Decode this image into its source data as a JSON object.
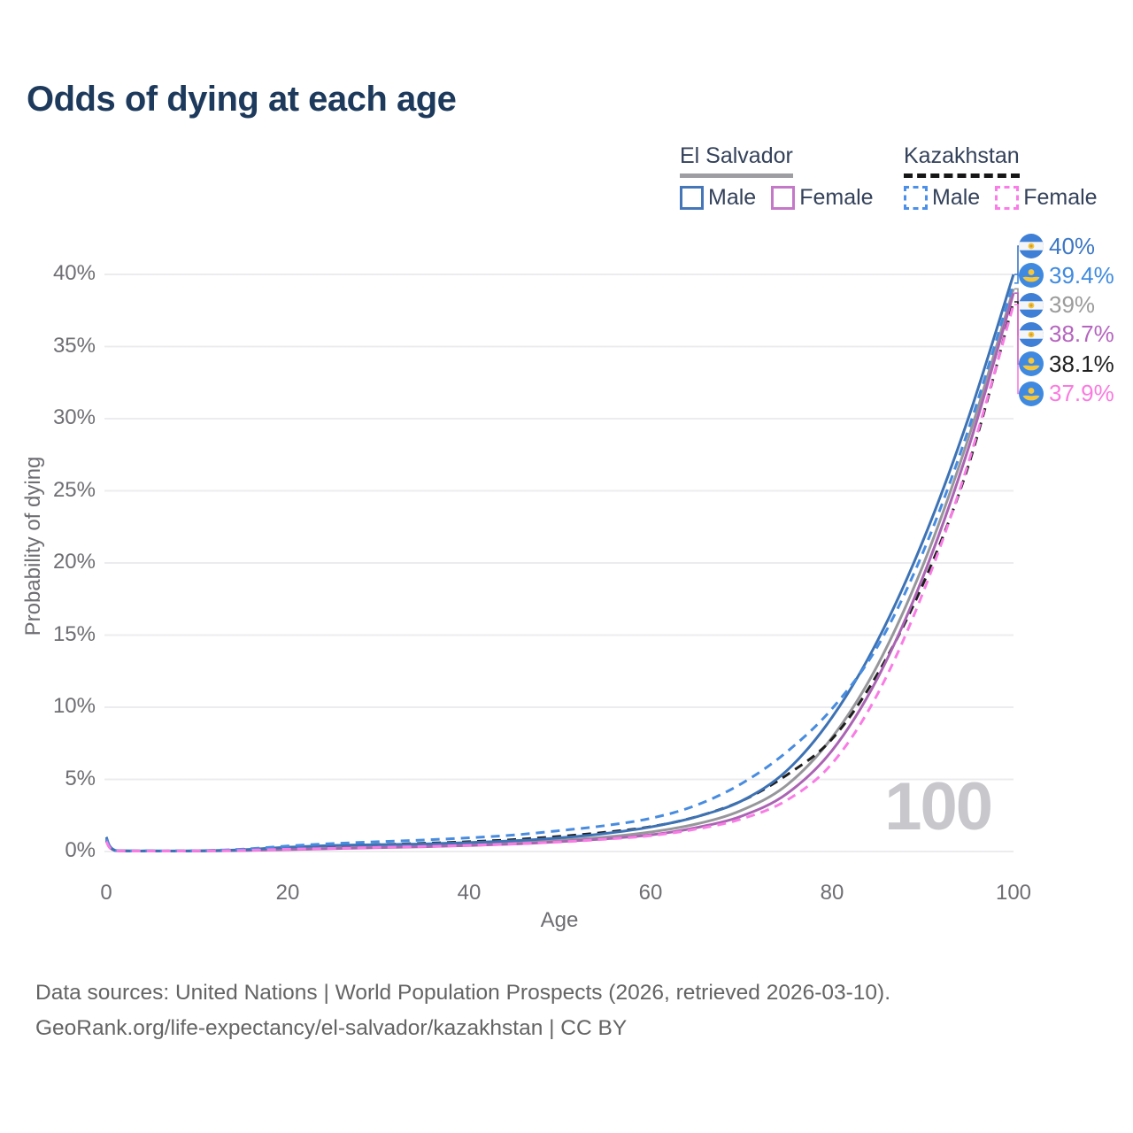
{
  "title": "Odds of dying at each age",
  "legend": {
    "groups": [
      {
        "label": "El Salvador",
        "line_style": "solid",
        "underline_color": "#9e9ea2",
        "items": [
          {
            "label": "Male",
            "color": "#4577b8",
            "style": "solid"
          },
          {
            "label": "Female",
            "color": "#c478c8",
            "style": "solid"
          }
        ]
      },
      {
        "label": "Kazakhstan",
        "line_style": "dashed",
        "underline_color": "#161616",
        "items": [
          {
            "label": "Male",
            "color": "#4a8fe8",
            "style": "dashed"
          },
          {
            "label": "Female",
            "color": "#fb7ce8",
            "style": "dashed"
          }
        ]
      }
    ]
  },
  "watermark": "100",
  "footer": {
    "line1": "Data sources: United Nations | World Population Prospects (2026, retrieved 2026-03-10).",
    "line2": "GeoRank.org/life-expectancy/el-salvador/kazakhstan | CC BY"
  },
  "chart_data": {
    "type": "line",
    "title": "Odds of dying at each age",
    "xlabel": "Age",
    "ylabel": "Probability of dying",
    "xlim": [
      0,
      100
    ],
    "ylim": [
      0,
      43
    ],
    "grid": "horizontal",
    "grid_color": "#ececef",
    "xticks": [
      {
        "v": 0,
        "label": "0"
      },
      {
        "v": 20,
        "label": "20"
      },
      {
        "v": 40,
        "label": "40"
      },
      {
        "v": 60,
        "label": "60"
      },
      {
        "v": 80,
        "label": "80"
      },
      {
        "v": 100,
        "label": "100"
      }
    ],
    "yticks": [
      {
        "v": 0,
        "label": "0%"
      },
      {
        "v": 5,
        "label": "5%"
      },
      {
        "v": 10,
        "label": "10%"
      },
      {
        "v": 15,
        "label": "15%"
      },
      {
        "v": 20,
        "label": "20%"
      },
      {
        "v": 25,
        "label": "25%"
      },
      {
        "v": 30,
        "label": "30%"
      },
      {
        "v": 35,
        "label": "35%"
      },
      {
        "v": 40,
        "label": "40%"
      }
    ],
    "x": [
      0,
      1,
      5,
      10,
      15,
      20,
      25,
      30,
      35,
      40,
      45,
      50,
      55,
      60,
      65,
      70,
      75,
      80,
      85,
      90,
      95,
      100
    ],
    "series": [
      {
        "id": "el-salvador-male",
        "name": "El Salvador Male",
        "color": "#3d72b4",
        "dash": "solid",
        "values": [
          1.0,
          0.08,
          0.04,
          0.05,
          0.12,
          0.3,
          0.42,
          0.47,
          0.52,
          0.62,
          0.75,
          0.95,
          1.25,
          1.7,
          2.4,
          3.5,
          5.6,
          9.3,
          14.6,
          21.5,
          30.0,
          40.0
        ],
        "end": {
          "text": "40%",
          "color": "#3c76c4",
          "flag": "el-salvador"
        }
      },
      {
        "id": "kazakhstan-male",
        "name": "Kazakhstan Male",
        "color": "#478ce0",
        "dash": "dashed",
        "values": [
          0.85,
          0.07,
          0.04,
          0.06,
          0.16,
          0.38,
          0.55,
          0.68,
          0.8,
          0.95,
          1.15,
          1.45,
          1.8,
          2.3,
          3.2,
          4.7,
          6.9,
          9.9,
          14.2,
          20.7,
          29.2,
          39.4
        ],
        "end": {
          "text": "39.4%",
          "color": "#3f8be0",
          "flag": "kazakhstan"
        }
      },
      {
        "id": "el-salvador-all",
        "name": "El Salvador",
        "color": "#97979b",
        "dash": "solid",
        "values": [
          0.9,
          0.07,
          0.03,
          0.04,
          0.1,
          0.23,
          0.32,
          0.36,
          0.4,
          0.48,
          0.6,
          0.78,
          1.0,
          1.35,
          1.9,
          2.85,
          4.6,
          7.9,
          12.9,
          19.8,
          28.6,
          39.0
        ],
        "end": {
          "text": "39%",
          "color": "#9b9b9b",
          "flag": "el-salvador"
        }
      },
      {
        "id": "el-salvador-female",
        "name": "El Salvador Female",
        "color": "#ab63b3",
        "dash": "solid",
        "values": [
          0.8,
          0.06,
          0.03,
          0.035,
          0.07,
          0.13,
          0.2,
          0.27,
          0.33,
          0.42,
          0.52,
          0.68,
          0.88,
          1.15,
          1.65,
          2.45,
          4.0,
          7.0,
          12.0,
          19.0,
          27.9,
          38.7
        ],
        "end": {
          "text": "38.7%",
          "color": "#b565be",
          "flag": "el-salvador"
        }
      },
      {
        "id": "kazakhstan-all",
        "name": "Kazakhstan",
        "color": "#1d1d1d",
        "dash": "dashed",
        "values": [
          0.75,
          0.06,
          0.035,
          0.05,
          0.13,
          0.29,
          0.4,
          0.48,
          0.57,
          0.68,
          0.83,
          1.05,
          1.33,
          1.72,
          2.4,
          3.5,
          5.3,
          7.8,
          12.3,
          18.5,
          26.7,
          38.1
        ],
        "end": {
          "text": "38.1%",
          "color": "#1f1f1f",
          "flag": "kazakhstan"
        }
      },
      {
        "id": "kazakhstan-female",
        "name": "Kazakhstan Female",
        "color": "#f97ce5",
        "dash": "dashed",
        "values": [
          0.7,
          0.05,
          0.03,
          0.04,
          0.08,
          0.16,
          0.22,
          0.29,
          0.35,
          0.43,
          0.53,
          0.66,
          0.85,
          1.1,
          1.55,
          2.25,
          3.55,
          6.1,
          10.9,
          17.9,
          26.9,
          37.9
        ],
        "end": {
          "text": "37.9%",
          "color": "#fb7ae0",
          "flag": "kazakhstan"
        }
      }
    ],
    "flag_colors": {
      "el-salvador": {
        "blue": "#3f7fd6",
        "white": "#f4f5f7",
        "emblem": "#f2c53d"
      },
      "kazakhstan": {
        "blue": "#3f8ae0",
        "gold": "#f6c73c"
      }
    }
  }
}
